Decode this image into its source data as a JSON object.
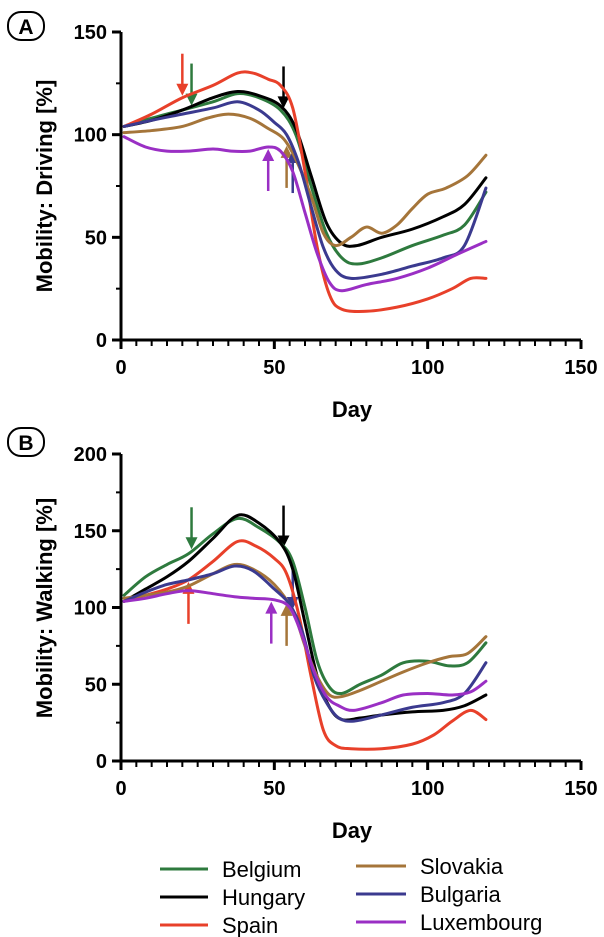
{
  "panels": [
    {
      "letter": "A"
    },
    {
      "letter": "B"
    }
  ],
  "legend": {
    "entries": [
      {
        "name": "Belgium",
        "color": "#2e7a3e"
      },
      {
        "name": "Hungary",
        "color": "#000000"
      },
      {
        "name": "Spain",
        "color": "#e8402a"
      },
      {
        "name": "Slovakia",
        "color": "#a5753a"
      },
      {
        "name": "Bulgaria",
        "color": "#3b3a8f"
      },
      {
        "name": "Luxembourg",
        "color": "#9a2fc4"
      }
    ]
  },
  "chart_data": [
    {
      "type": "line",
      "panel": "A",
      "title": "",
      "xlabel": "Day",
      "ylabel": "Mobility: Driving [%]",
      "xlim": [
        0,
        150
      ],
      "ylim": [
        0,
        150
      ],
      "x_ticks": [
        0,
        50,
        100,
        150
      ],
      "y_ticks": [
        0,
        50,
        100,
        150
      ],
      "grid": false,
      "series": [
        {
          "name": "Belgium",
          "color": "#2e7a3e",
          "points": [
            [
              1,
              104
            ],
            [
              10,
              108
            ],
            [
              20,
              112
            ],
            [
              30,
              116
            ],
            [
              38,
              120
            ],
            [
              45,
              118
            ],
            [
              52,
              112
            ],
            [
              57,
              100
            ],
            [
              62,
              75
            ],
            [
              67,
              52
            ],
            [
              72,
              40
            ],
            [
              77,
              37
            ],
            [
              85,
              40
            ],
            [
              95,
              46
            ],
            [
              105,
              51
            ],
            [
              112,
              56
            ],
            [
              119,
              72
            ]
          ]
        },
        {
          "name": "Hungary",
          "color": "#000000",
          "points": [
            [
              1,
              104
            ],
            [
              10,
              107
            ],
            [
              20,
              112
            ],
            [
              30,
              118
            ],
            [
              38,
              121
            ],
            [
              45,
              119
            ],
            [
              52,
              114
            ],
            [
              57,
              103
            ],
            [
              62,
              80
            ],
            [
              67,
              57
            ],
            [
              72,
              47
            ],
            [
              77,
              46
            ],
            [
              85,
              50
            ],
            [
              95,
              54
            ],
            [
              105,
              60
            ],
            [
              112,
              66
            ],
            [
              119,
              79
            ]
          ]
        },
        {
          "name": "Spain",
          "color": "#e8402a",
          "points": [
            [
              1,
              104
            ],
            [
              10,
              110
            ],
            [
              20,
              118
            ],
            [
              30,
              124
            ],
            [
              38,
              130
            ],
            [
              43,
              130
            ],
            [
              48,
              127
            ],
            [
              52,
              124
            ],
            [
              56,
              113
            ],
            [
              60,
              82
            ],
            [
              64,
              45
            ],
            [
              68,
              22
            ],
            [
              72,
              15
            ],
            [
              80,
              14
            ],
            [
              90,
              16
            ],
            [
              100,
              20
            ],
            [
              108,
              25
            ],
            [
              114,
              30
            ],
            [
              119,
              30
            ]
          ]
        },
        {
          "name": "Slovakia",
          "color": "#a5753a",
          "points": [
            [
              1,
              101
            ],
            [
              10,
              102
            ],
            [
              20,
              104
            ],
            [
              28,
              108
            ],
            [
              35,
              110
            ],
            [
              42,
              108
            ],
            [
              48,
              103
            ],
            [
              53,
              98
            ],
            [
              57,
              88
            ],
            [
              62,
              70
            ],
            [
              66,
              52
            ],
            [
              70,
              46
            ],
            [
              75,
              50
            ],
            [
              80,
              55
            ],
            [
              85,
              52
            ],
            [
              90,
              56
            ],
            [
              95,
              64
            ],
            [
              100,
              71
            ],
            [
              106,
              74
            ],
            [
              113,
              80
            ],
            [
              119,
              90
            ]
          ]
        },
        {
          "name": "Bulgaria",
          "color": "#3b3a8f",
          "points": [
            [
              1,
              104
            ],
            [
              10,
              107
            ],
            [
              20,
              110
            ],
            [
              30,
              113
            ],
            [
              38,
              116
            ],
            [
              45,
              112
            ],
            [
              50,
              106
            ],
            [
              54,
              100
            ],
            [
              58,
              86
            ],
            [
              62,
              65
            ],
            [
              66,
              45
            ],
            [
              70,
              34
            ],
            [
              75,
              30
            ],
            [
              85,
              32
            ],
            [
              95,
              36
            ],
            [
              105,
              40
            ],
            [
              112,
              46
            ],
            [
              119,
              74
            ]
          ]
        },
        {
          "name": "Luxembourg",
          "color": "#9a2fc4",
          "points": [
            [
              1,
              99
            ],
            [
              8,
              94
            ],
            [
              15,
              92
            ],
            [
              22,
              92
            ],
            [
              30,
              93
            ],
            [
              36,
              92
            ],
            [
              42,
              92
            ],
            [
              48,
              94
            ],
            [
              52,
              92
            ],
            [
              56,
              82
            ],
            [
              60,
              62
            ],
            [
              64,
              42
            ],
            [
              68,
              28
            ],
            [
              72,
              24
            ],
            [
              80,
              27
            ],
            [
              90,
              30
            ],
            [
              100,
              35
            ],
            [
              110,
              42
            ],
            [
              119,
              48
            ]
          ]
        }
      ],
      "annotations": [
        {
          "type": "arrow-down",
          "day": 20,
          "color": "#e8402a"
        },
        {
          "type": "arrow-down",
          "day": 23,
          "color": "#2e7a3e"
        },
        {
          "type": "arrow-down",
          "day": 53,
          "color": "#000000"
        },
        {
          "type": "arrow-up",
          "day": 48,
          "color": "#9a2fc4"
        },
        {
          "type": "arrow-up",
          "day": 54,
          "color": "#a5753a"
        },
        {
          "type": "arrow-up",
          "day": 56,
          "color": "#3b3a8f"
        }
      ]
    },
    {
      "type": "line",
      "panel": "B",
      "title": "",
      "xlabel": "Day",
      "ylabel": "Mobility: Walking [%]",
      "xlim": [
        0,
        150
      ],
      "ylim": [
        0,
        200
      ],
      "x_ticks": [
        0,
        50,
        100,
        150
      ],
      "y_ticks": [
        0,
        50,
        100,
        150,
        200
      ],
      "grid": false,
      "series": [
        {
          "name": "Belgium",
          "color": "#2e7a3e",
          "points": [
            [
              1,
              108
            ],
            [
              8,
              120
            ],
            [
              15,
              128
            ],
            [
              22,
              135
            ],
            [
              30,
              148
            ],
            [
              38,
              158
            ],
            [
              45,
              152
            ],
            [
              52,
              142
            ],
            [
              56,
              130
            ],
            [
              60,
              100
            ],
            [
              64,
              65
            ],
            [
              68,
              48
            ],
            [
              72,
              44
            ],
            [
              78,
              50
            ],
            [
              85,
              56
            ],
            [
              92,
              64
            ],
            [
              100,
              65
            ],
            [
              107,
              62
            ],
            [
              113,
              64
            ],
            [
              119,
              77
            ]
          ]
        },
        {
          "name": "Hungary",
          "color": "#000000",
          "points": [
            [
              1,
              104
            ],
            [
              8,
              112
            ],
            [
              15,
              120
            ],
            [
              22,
              130
            ],
            [
              30,
              145
            ],
            [
              38,
              160
            ],
            [
              45,
              155
            ],
            [
              52,
              142
            ],
            [
              56,
              125
            ],
            [
              60,
              90
            ],
            [
              64,
              55
            ],
            [
              68,
              35
            ],
            [
              72,
              27
            ],
            [
              78,
              28
            ],
            [
              85,
              30
            ],
            [
              95,
              32
            ],
            [
              105,
              33
            ],
            [
              112,
              36
            ],
            [
              119,
              43
            ]
          ]
        },
        {
          "name": "Spain",
          "color": "#e8402a",
          "points": [
            [
              1,
              104
            ],
            [
              8,
              108
            ],
            [
              15,
              112
            ],
            [
              22,
              118
            ],
            [
              30,
              130
            ],
            [
              38,
              143
            ],
            [
              44,
              140
            ],
            [
              50,
              132
            ],
            [
              54,
              122
            ],
            [
              58,
              95
            ],
            [
              62,
              55
            ],
            [
              66,
              20
            ],
            [
              70,
              10
            ],
            [
              75,
              8
            ],
            [
              85,
              8
            ],
            [
              95,
              11
            ],
            [
              102,
              17
            ],
            [
              108,
              26
            ],
            [
              114,
              33
            ],
            [
              119,
              27
            ]
          ]
        },
        {
          "name": "Slovakia",
          "color": "#a5753a",
          "points": [
            [
              1,
              106
            ],
            [
              8,
              108
            ],
            [
              15,
              110
            ],
            [
              22,
              114
            ],
            [
              30,
              122
            ],
            [
              37,
              128
            ],
            [
              43,
              125
            ],
            [
              50,
              115
            ],
            [
              56,
              98
            ],
            [
              60,
              75
            ],
            [
              64,
              55
            ],
            [
              68,
              43
            ],
            [
              72,
              42
            ],
            [
              78,
              46
            ],
            [
              85,
              52
            ],
            [
              92,
              58
            ],
            [
              100,
              64
            ],
            [
              107,
              68
            ],
            [
              113,
              70
            ],
            [
              119,
              81
            ]
          ]
        },
        {
          "name": "Bulgaria",
          "color": "#3b3a8f",
          "points": [
            [
              1,
              104
            ],
            [
              8,
              110
            ],
            [
              15,
              115
            ],
            [
              22,
              118
            ],
            [
              30,
              122
            ],
            [
              37,
              127
            ],
            [
              43,
              124
            ],
            [
              50,
              112
            ],
            [
              55,
              102
            ],
            [
              59,
              85
            ],
            [
              63,
              55
            ],
            [
              67,
              38
            ],
            [
              71,
              28
            ],
            [
              76,
              26
            ],
            [
              85,
              30
            ],
            [
              95,
              35
            ],
            [
              105,
              38
            ],
            [
              112,
              44
            ],
            [
              119,
              64
            ]
          ]
        },
        {
          "name": "Luxembourg",
          "color": "#9a2fc4",
          "points": [
            [
              1,
              104
            ],
            [
              8,
              106
            ],
            [
              15,
              109
            ],
            [
              22,
              111
            ],
            [
              30,
              109
            ],
            [
              37,
              107
            ],
            [
              43,
              106
            ],
            [
              50,
              105
            ],
            [
              55,
              100
            ],
            [
              59,
              82
            ],
            [
              63,
              58
            ],
            [
              67,
              42
            ],
            [
              71,
              36
            ],
            [
              76,
              33
            ],
            [
              85,
              38
            ],
            [
              92,
              43
            ],
            [
              100,
              44
            ],
            [
              108,
              43
            ],
            [
              114,
              45
            ],
            [
              119,
              52
            ]
          ]
        }
      ],
      "annotations": [
        {
          "type": "arrow-up",
          "day": 22,
          "color": "#e8402a"
        },
        {
          "type": "arrow-down",
          "day": 23,
          "color": "#2e7a3e"
        },
        {
          "type": "arrow-down",
          "day": 53,
          "color": "#000000"
        },
        {
          "type": "arrow-up",
          "day": 49,
          "color": "#9a2fc4"
        },
        {
          "type": "arrow-up",
          "day": 54,
          "color": "#a5753a"
        },
        {
          "type": "arrow-down",
          "day": 56,
          "color": "#3b3a8f"
        }
      ]
    }
  ]
}
